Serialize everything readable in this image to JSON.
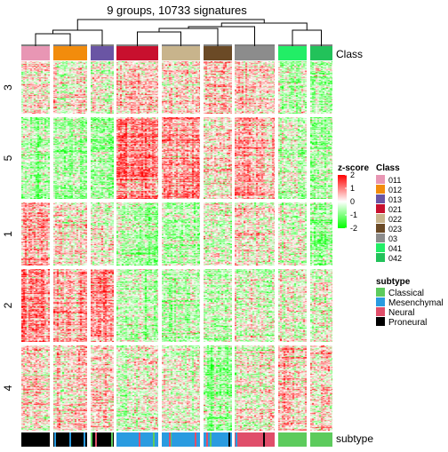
{
  "chart_data": {
    "type": "heatmap",
    "title": "9 groups, 10733 signatures",
    "top_annotation": {
      "name": "Class",
      "groups": [
        "011",
        "012",
        "013",
        "021",
        "022",
        "023",
        "03",
        "041",
        "042"
      ],
      "colors": [
        "#E896B4",
        "#F28C0C",
        "#6A55A4",
        "#C8102E",
        "#C8B48C",
        "#6B4A26",
        "#8C8C8C",
        "#22EE66",
        "#22C25A"
      ]
    },
    "row_splits": [
      "3",
      "5",
      "1",
      "2",
      "4"
    ],
    "bottom_annotation": {
      "name": "subtype",
      "legend_title": "subtype",
      "categories": [
        "Classical",
        "Mesenchymal",
        "Neural",
        "Proneural"
      ],
      "colors": [
        "#5DCB5D",
        "#2A9BE0",
        "#E04E6A",
        "#000000"
      ],
      "dominant_per_group": [
        "Proneural",
        "Proneural",
        "Proneural",
        "Mesenchymal",
        "Mesenchymal",
        "Mesenchymal",
        "Neural",
        "Classical",
        "Classical"
      ]
    },
    "color_scale": {
      "title": "z-score",
      "ticks": [
        2,
        1,
        0,
        -1,
        -2
      ],
      "colors": [
        "#FF0000",
        "#FFFFFF",
        "#00FF00"
      ],
      "range": [
        -2,
        2
      ]
    },
    "class_legend_title": "Class",
    "mean_zscore_by_row_group": [
      [
        0.1,
        0.0,
        -0.1,
        0.4,
        0.3,
        0.5,
        0.2,
        -0.4,
        -0.5
      ],
      [
        -0.6,
        -0.7,
        -0.6,
        1.0,
        0.8,
        0.3,
        0.6,
        -0.3,
        -0.6
      ],
      [
        0.6,
        0.2,
        0.1,
        -0.5,
        -0.4,
        -0.2,
        0.1,
        -0.2,
        -0.6
      ],
      [
        0.8,
        0.7,
        0.9,
        -0.4,
        -0.5,
        -0.3,
        -0.2,
        0.0,
        -0.2
      ],
      [
        0.2,
        0.3,
        0.3,
        -0.2,
        -0.1,
        -0.6,
        0.0,
        0.5,
        0.1
      ]
    ]
  }
}
